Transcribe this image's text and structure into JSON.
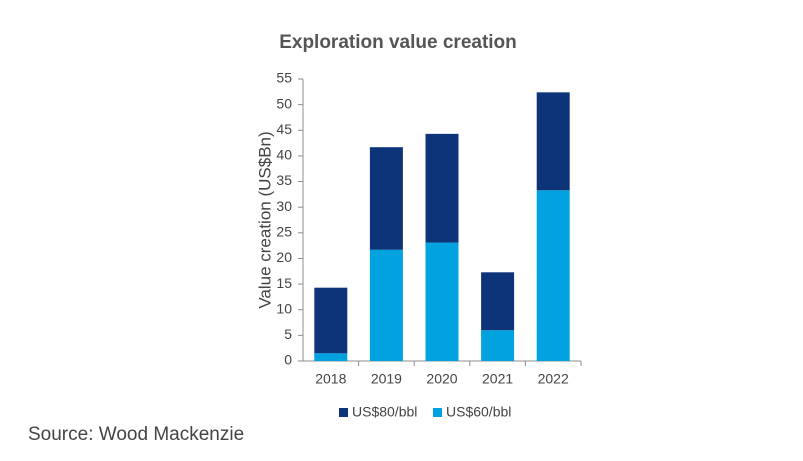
{
  "chart_data": {
    "type": "bar",
    "stacked": true,
    "title": "Exploration value creation",
    "xlabel": "",
    "ylabel": "Value creation (US$Bn)",
    "categories": [
      "2018",
      "2019",
      "2020",
      "2021",
      "2022"
    ],
    "series": [
      {
        "name": "US$60/bbl",
        "color": "#00a3e0",
        "values": [
          1.5,
          21.7,
          23.1,
          6.0,
          33.3
        ]
      },
      {
        "name": "US$80/bbl",
        "color": "#0d3479",
        "values": [
          12.8,
          20.0,
          21.2,
          11.3,
          19.1
        ]
      }
    ],
    "legend_order": [
      "US$80/bbl",
      "US$60/bbl"
    ],
    "legend_position": "bottom",
    "ylim": [
      0,
      55
    ],
    "yticks": [
      0,
      5,
      10,
      15,
      20,
      25,
      30,
      35,
      40,
      45,
      50,
      55
    ],
    "grid": false
  },
  "footer": {
    "source": "Source: Wood Mackenzie"
  }
}
